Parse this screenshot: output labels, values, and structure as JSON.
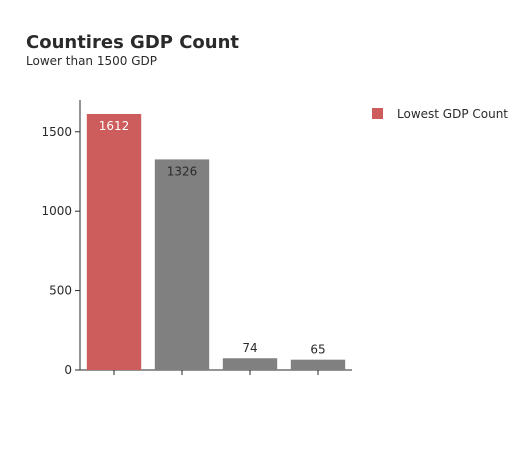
{
  "chart_data": {
    "type": "bar",
    "title": "Countires GDP Count",
    "subtitle": "Lower than 1500 GDP",
    "xlabel": "",
    "ylabel": "",
    "categories": [
      "",
      "",
      "",
      ""
    ],
    "values": [
      1612,
      1326,
      74,
      65
    ],
    "highlight_index": 0,
    "ylim": [
      0,
      1700
    ],
    "yticks": [
      0,
      500,
      1000,
      1500
    ],
    "grid": false,
    "legend": {
      "placement": "top-right",
      "entries": [
        {
          "label": "Lowest GDP Count",
          "color": "#cd5c5c"
        }
      ]
    },
    "colors": {
      "highlight": "#cd5c5c",
      "default": "#808080"
    }
  }
}
